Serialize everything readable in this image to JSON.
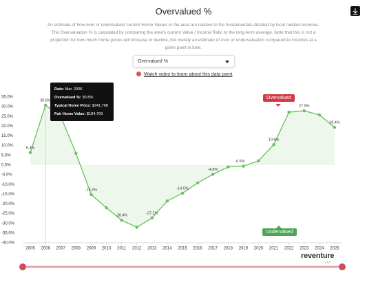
{
  "title": "Overvalued %",
  "description": [
    "An estimate of how over or undervalued current Home Values in the area are relative to the fundamentals dictated by local median incomes.",
    "The Overvaluation % is calculated by comparing the area's current Value / Income Ratio to the long-term average. Note that this is not a",
    "projection for how much home prices will increase or decline, but merely an estimate of over or undervaluation compared to incomes at a",
    "given point in time."
  ],
  "dropdown": "Overvalued %",
  "video_link": "Watch video to learn about this data point",
  "tooltip": [
    {
      "label": "Date:",
      "value": "Mar. 2006"
    },
    {
      "label": "Overvalued %:",
      "value": "30.8%"
    },
    {
      "label": "Typical Home Price:",
      "value": "$241,768"
    },
    {
      "label": "Fair Home Value:",
      "value": "$184,709"
    }
  ],
  "badges": {
    "over": "Overvalued",
    "under": "Undervalued"
  },
  "logo": {
    "name": "reventure",
    "sub": "APP"
  },
  "chart_data": {
    "type": "line",
    "categories": [
      "2005",
      "2006",
      "2007",
      "2008",
      "2009",
      "2010",
      "2011",
      "2012",
      "2013",
      "2014",
      "2015",
      "2016",
      "2017",
      "2018",
      "2019",
      "2020",
      "2021",
      "2022",
      "2023",
      "2024",
      "2025"
    ],
    "series": [
      {
        "name": "Overvalued %",
        "color": "#6abf5e",
        "values": [
          6.4,
          30.8,
          25,
          6,
          -15.2,
          -22,
          -28.4,
          -32,
          -27.2,
          -18.5,
          -14.5,
          -9.2,
          -4.8,
          -1,
          -0.6,
          2.2,
          10.5,
          27.2,
          27.9,
          25.8,
          19.4
        ],
        "value_labels": [
          "6.4%",
          "30.8%",
          null,
          null,
          "-15.2%",
          null,
          "-28.4%",
          null,
          "-27.2%",
          null,
          "-14.5%",
          null,
          "-4.8%",
          null,
          "-0.6%",
          null,
          "10.5%",
          null,
          "27.9%",
          null,
          "19.4%"
        ]
      }
    ],
    "ylim": [
      -40,
      35
    ],
    "yticks": [
      {
        "value": 35,
        "label": "35.0%"
      },
      {
        "value": 30,
        "label": "30.0%"
      },
      {
        "value": 25,
        "label": "25.0%"
      },
      {
        "value": 20,
        "label": "20.0%"
      },
      {
        "value": 15,
        "label": "15.0%"
      },
      {
        "value": 10,
        "label": "10.0%"
      },
      {
        "value": 5,
        "label": "5.0%"
      },
      {
        "value": 0,
        "label": "0.0%"
      },
      {
        "value": -5,
        "label": "-5.0%"
      },
      {
        "value": -10,
        "label": "-10.0%"
      },
      {
        "value": -15,
        "label": "-15.0%"
      },
      {
        "value": -20,
        "label": "-20.0%"
      },
      {
        "value": -25,
        "label": "-25.0%"
      },
      {
        "value": -30,
        "label": "-30.0%"
      },
      {
        "value": -35,
        "label": "-35.0%"
      },
      {
        "value": -40,
        "label": "-40.0%"
      }
    ],
    "grid": false
  }
}
